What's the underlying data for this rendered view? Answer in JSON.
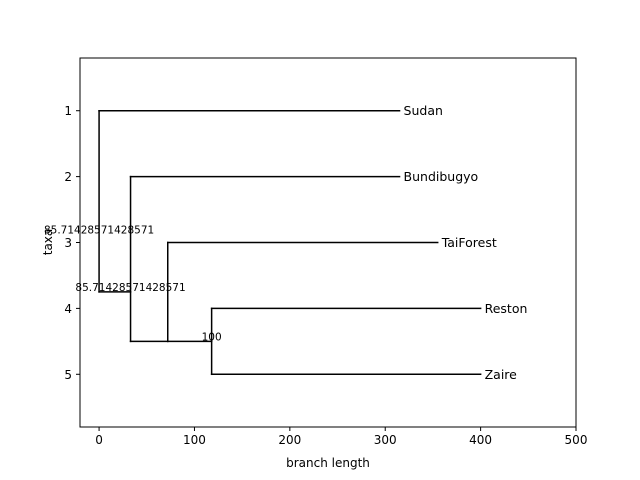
{
  "chart_data": {
    "type": "dendrogram",
    "xlabel": "branch length",
    "ylabel": "taxa",
    "xlim": [
      -20,
      500
    ],
    "ylim": [
      5.8,
      0.2
    ],
    "xticks": [
      0,
      100,
      200,
      300,
      400,
      500
    ],
    "yticks": [
      1,
      2,
      3,
      4,
      5
    ],
    "grid": false,
    "leaves": [
      {
        "name": "Sudan",
        "y": 1,
        "x": 315
      },
      {
        "name": "Bundibugyo",
        "y": 2,
        "x": 315
      },
      {
        "name": "TaiForest",
        "y": 3,
        "x": 355
      },
      {
        "name": "Reston",
        "y": 4,
        "x": 400
      },
      {
        "name": "Zaire",
        "y": 5,
        "x": 400
      }
    ],
    "internal_nodes": [
      {
        "id": "root",
        "x": 0,
        "y": 2.875,
        "support": "85.71428571428571",
        "children": [
          "Sudan",
          "n1"
        ]
      },
      {
        "id": "n1",
        "x": 33,
        "y": 3.75,
        "support": "85.71428571428571",
        "children": [
          "Bundibugyo",
          "n2"
        ]
      },
      {
        "id": "n2",
        "x": 72,
        "y": 4.5,
        "support": "",
        "children": [
          "TaiForest",
          "n3"
        ]
      },
      {
        "id": "n3",
        "x": 118,
        "y": 4.5,
        "support": "100",
        "children": [
          "Reston",
          "Zaire"
        ]
      }
    ]
  }
}
